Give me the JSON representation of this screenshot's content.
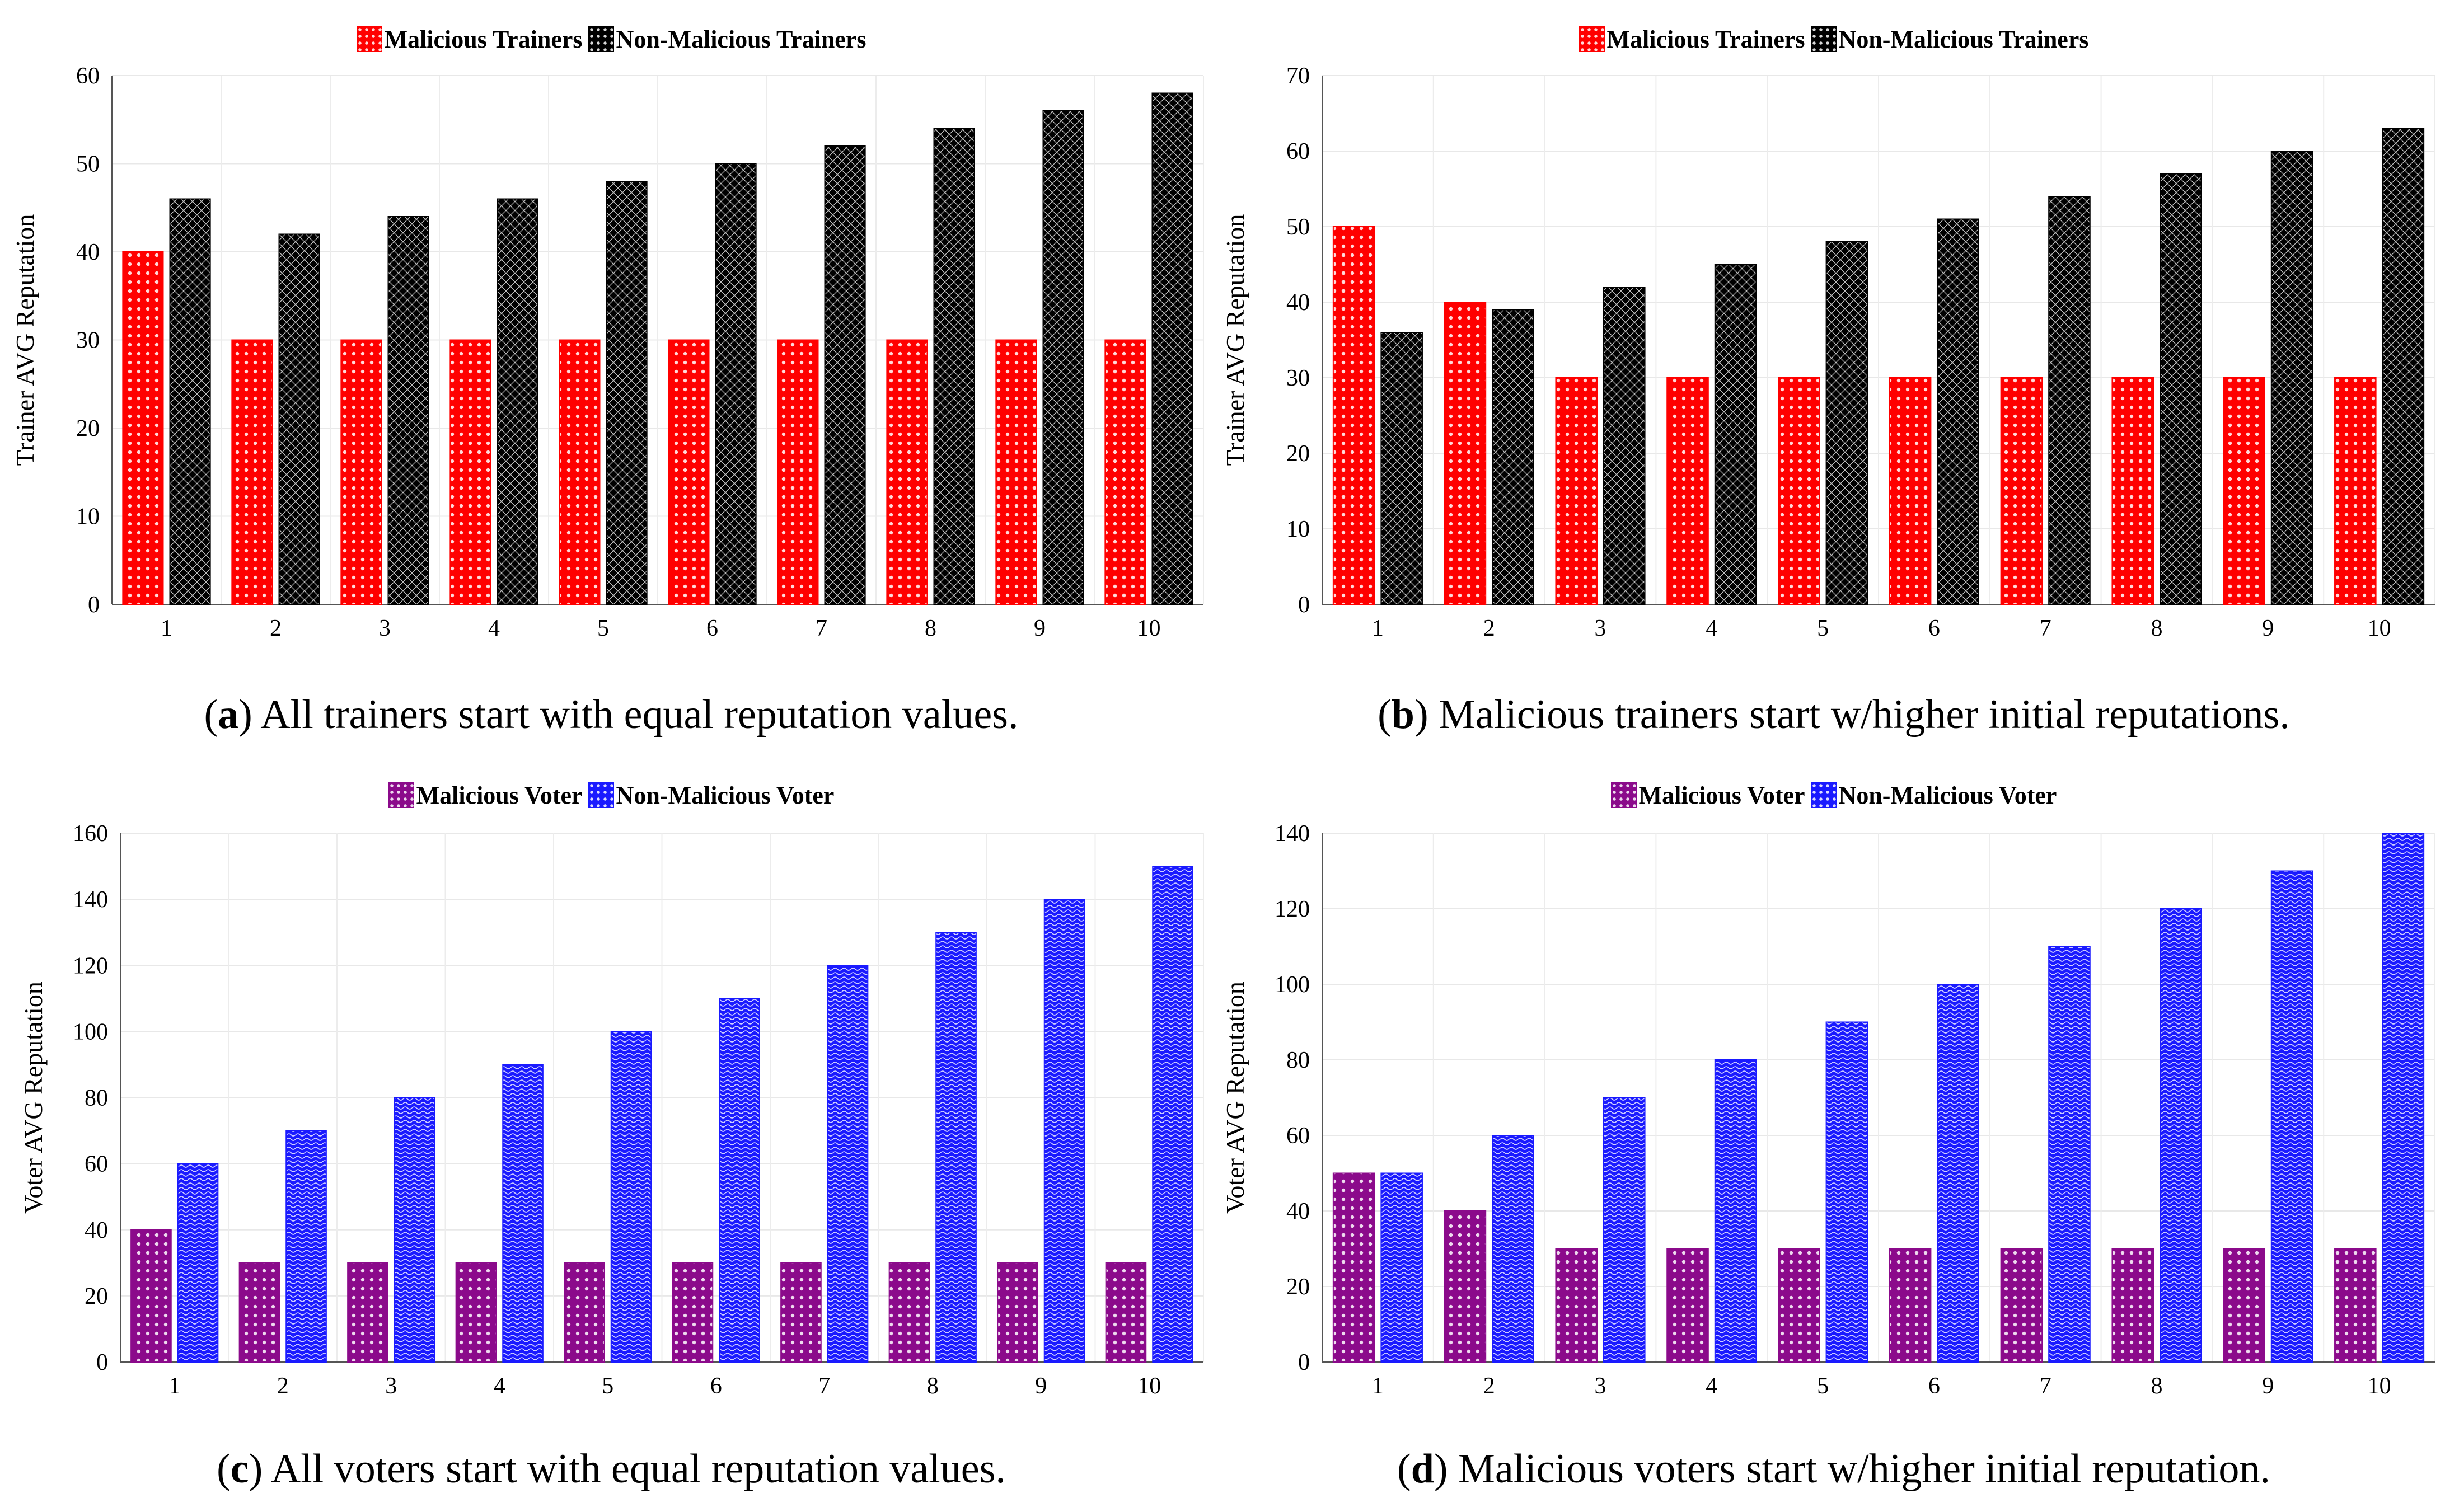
{
  "colors": {
    "malicious_trainer": "#ff0000",
    "non_malicious_trainer": "#000000",
    "malicious_voter": "#8b0a8b",
    "non_malicious_voter": "#1a1aff"
  },
  "chart_data": [
    {
      "id": "a",
      "type": "bar",
      "title": "",
      "categories": [
        "1",
        "2",
        "3",
        "4",
        "5",
        "6",
        "7",
        "8",
        "9",
        "10"
      ],
      "series": [
        {
          "name": "Malicious Trainers",
          "values": [
            40,
            30,
            30,
            30,
            30,
            30,
            30,
            30,
            30,
            30
          ]
        },
        {
          "name": "Non-Malicious Trainers",
          "values": [
            46,
            42,
            44,
            46,
            48,
            50,
            52,
            54,
            56,
            58
          ]
        }
      ],
      "xlabel": "",
      "ylabel": "Trainer AVG Reputation",
      "ylim": [
        0,
        60
      ],
      "yticks": [
        "0",
        "10",
        "20",
        "30",
        "40",
        "50",
        "60"
      ],
      "legend_position": "top-center",
      "grid": true,
      "caption_letter": "a",
      "caption_text": "All trainers start with equal reputation values."
    },
    {
      "id": "b",
      "type": "bar",
      "title": "",
      "categories": [
        "1",
        "2",
        "3",
        "4",
        "5",
        "6",
        "7",
        "8",
        "9",
        "10"
      ],
      "series": [
        {
          "name": "Malicious Trainers",
          "values": [
            50,
            40,
            30,
            30,
            30,
            30,
            30,
            30,
            30,
            30
          ]
        },
        {
          "name": "Non-Malicious Trainers",
          "values": [
            36,
            39,
            42,
            45,
            48,
            51,
            54,
            57,
            60,
            63
          ]
        }
      ],
      "xlabel": "",
      "ylabel": "Trainer AVG Reputation",
      "ylim": [
        0,
        70
      ],
      "yticks": [
        "0",
        "10",
        "20",
        "30",
        "40",
        "50",
        "60",
        "70"
      ],
      "legend_position": "top-center",
      "grid": true,
      "caption_letter": "b",
      "caption_text": "Malicious trainers start w/higher initial reputations."
    },
    {
      "id": "c",
      "type": "bar",
      "title": "",
      "categories": [
        "1",
        "2",
        "3",
        "4",
        "5",
        "6",
        "7",
        "8",
        "9",
        "10"
      ],
      "series": [
        {
          "name": "Malicious Voter",
          "values": [
            40,
            30,
            30,
            30,
            30,
            30,
            30,
            30,
            30,
            30
          ]
        },
        {
          "name": "Non-Malicious Voter",
          "values": [
            60,
            70,
            80,
            90,
            100,
            110,
            120,
            130,
            140,
            150
          ]
        }
      ],
      "xlabel": "",
      "ylabel": "Voter AVG Reputation",
      "ylim": [
        0,
        160
      ],
      "yticks": [
        "0",
        "20",
        "40",
        "60",
        "80",
        "100",
        "120",
        "140",
        "160"
      ],
      "legend_position": "top-center",
      "grid": true,
      "caption_letter": "c",
      "caption_text": "All voters start with equal reputation values."
    },
    {
      "id": "d",
      "type": "bar",
      "title": "",
      "categories": [
        "1",
        "2",
        "3",
        "4",
        "5",
        "6",
        "7",
        "8",
        "9",
        "10"
      ],
      "series": [
        {
          "name": "Malicious Voter",
          "values": [
            50,
            40,
            30,
            30,
            30,
            30,
            30,
            30,
            30,
            30
          ]
        },
        {
          "name": "Non-Malicious Voter",
          "values": [
            50,
            60,
            70,
            80,
            90,
            100,
            110,
            120,
            130,
            140
          ]
        }
      ],
      "xlabel": "",
      "ylabel": "Voter AVG Reputation",
      "ylim": [
        0,
        140
      ],
      "yticks": [
        "0",
        "20",
        "40",
        "60",
        "80",
        "100",
        "120",
        "140"
      ],
      "legend_position": "top-center",
      "grid": true,
      "caption_letter": "d",
      "caption_text": "Malicious voters start w/higher initial reputation."
    }
  ]
}
